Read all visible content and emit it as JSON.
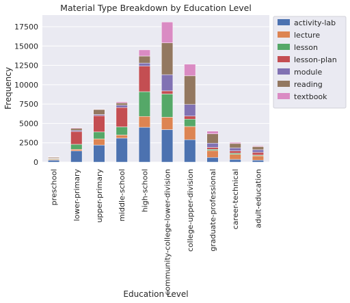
{
  "chart_data": {
    "type": "bar",
    "stacked": true,
    "title": "Material Type Breakdown by Education Level",
    "xlabel": "Education Level",
    "ylabel": "Frequency",
    "ylim": [
      0,
      19000
    ],
    "yticks": [
      0,
      2500,
      5000,
      7500,
      10000,
      12500,
      15000,
      17500
    ],
    "grid": true,
    "legend_position": "outside-top-right",
    "categories": [
      "preschool",
      "lower-primary",
      "upper-primary",
      "middle-school",
      "high-school",
      "community-college-lower-division",
      "college-upper-division",
      "graduate-professional",
      "career-technical",
      "adult-education"
    ],
    "series": [
      {
        "name": "activity-lab",
        "color": "#4c72b0",
        "values": [
          250,
          1450,
          2200,
          3100,
          4500,
          4200,
          2900,
          600,
          350,
          250
        ]
      },
      {
        "name": "lecture",
        "color": "#dd8452",
        "values": [
          100,
          200,
          800,
          400,
          1400,
          1600,
          1700,
          900,
          650,
          550
        ]
      },
      {
        "name": "lesson",
        "color": "#55a868",
        "values": [
          80,
          650,
          900,
          1050,
          3200,
          3000,
          950,
          150,
          150,
          100
        ]
      },
      {
        "name": "lesson-plan",
        "color": "#c44e52",
        "values": [
          70,
          1650,
          2100,
          2500,
          3300,
          400,
          400,
          250,
          300,
          350
        ]
      },
      {
        "name": "module",
        "color": "#8172b3",
        "values": [
          40,
          150,
          150,
          300,
          400,
          2100,
          1500,
          550,
          400,
          350
        ]
      },
      {
        "name": "reading",
        "color": "#937860",
        "values": [
          110,
          250,
          650,
          300,
          900,
          4100,
          3700,
          1200,
          550,
          400
        ]
      },
      {
        "name": "textbook",
        "color": "#da8bc3",
        "values": [
          50,
          100,
          50,
          150,
          800,
          2700,
          1500,
          350,
          150,
          100
        ]
      }
    ]
  }
}
